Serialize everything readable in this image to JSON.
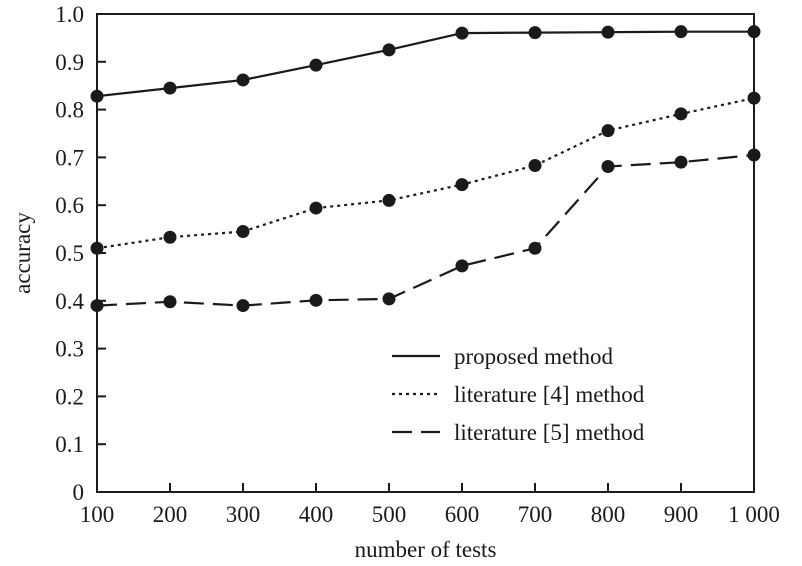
{
  "chart_data": {
    "type": "line",
    "title": "",
    "xlabel": "number of tests",
    "ylabel": "accuracy",
    "x": [
      100,
      200,
      300,
      400,
      500,
      600,
      700,
      800,
      900,
      1000
    ],
    "x_tick_labels": [
      "100",
      "200",
      "300",
      "400",
      "500",
      "600",
      "700",
      "800",
      "900",
      "1 000"
    ],
    "y_ticks": [
      0,
      0.1,
      0.2,
      0.3,
      0.4,
      0.5,
      0.6,
      0.7,
      0.8,
      0.9,
      1.0
    ],
    "y_tick_labels": [
      "0",
      "0.1",
      "0.2",
      "0.3",
      "0.4",
      "0.5",
      "0.6",
      "0.7",
      "0.8",
      "0.9",
      "1.0"
    ],
    "xlim": [
      100,
      1000
    ],
    "ylim": [
      0,
      1.0
    ],
    "grid": false,
    "legend_position": "bottom-right",
    "series": [
      {
        "name": "proposed method",
        "line_style": "solid",
        "values": [
          0.828,
          0.845,
          0.862,
          0.893,
          0.925,
          0.96,
          0.961,
          0.962,
          0.963,
          0.963
        ]
      },
      {
        "name": "literature [4] method",
        "line_style": "dotted",
        "values": [
          0.51,
          0.533,
          0.545,
          0.594,
          0.61,
          0.643,
          0.683,
          0.756,
          0.791,
          0.824
        ]
      },
      {
        "name": "literature [5] method",
        "line_style": "dashed",
        "values": [
          0.39,
          0.398,
          0.39,
          0.401,
          0.404,
          0.473,
          0.51,
          0.681,
          0.69,
          0.705
        ]
      }
    ],
    "colors": {
      "line": "#1a1a1a",
      "marker": "#1a1a1a",
      "background": "#ffffff"
    }
  }
}
